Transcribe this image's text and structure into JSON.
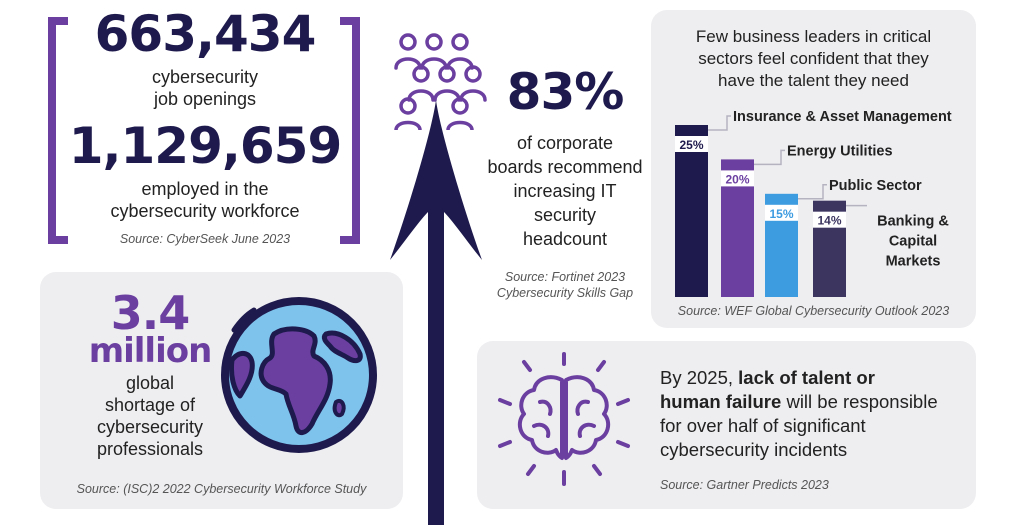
{
  "jobs": {
    "openings_value": "663,434",
    "openings_label_1": "cybersecurity",
    "openings_label_2": "job openings",
    "employed_value": "1,129,659",
    "employed_label_1": "employed in the",
    "employed_label_2": "cybersecurity workforce",
    "source": "Source: CyberSeek June 2023"
  },
  "shortage": {
    "value": "3.4",
    "unit": "million",
    "label_1": "global",
    "label_2": "shortage of",
    "label_3": "cybersecurity",
    "label_4": "professionals",
    "source": "Source: (ISC)2 2022 Cybersecurity Workforce Study"
  },
  "boards": {
    "value": "83%",
    "label_1": "of corporate",
    "label_2": "boards recommend",
    "label_3": "increasing IT",
    "label_4": "security",
    "label_5": "headcount",
    "source_1": "Source: Fortinet 2023",
    "source_2": "Cybersecurity Skills Gap"
  },
  "talent": {
    "prefix": "By 2025, ",
    "bold_1": "lack of talent or",
    "bold_2": "human failure",
    "text_2": " will be responsible",
    "text_3": "for over half of significant",
    "text_4": "cybersecurity incidents",
    "source": "Source: Gartner Predicts 2023"
  },
  "colors": {
    "navy": "#1e1a4d",
    "purple": "#6b3fa0",
    "blue": "#3d9be0",
    "dark_slate": "#3b3560",
    "globe_ocean": "#7ec3ec",
    "panel_bg": "#eeeef1"
  },
  "icons": [
    "people-group-icon",
    "up-arrow-icon",
    "globe-icon",
    "brain-icon"
  ],
  "chart_data": {
    "type": "bar",
    "title_1": "Few business leaders in critical",
    "title_2": "sectors feel confident that they",
    "title_3": "have the talent they need",
    "categories": [
      "Insurance & Asset Management",
      "Energy Utilities",
      "Public Sector",
      "Banking & Capital Markets"
    ],
    "category_lines": [
      [
        "Insurance & Asset Management"
      ],
      [
        "Energy Utilities"
      ],
      [
        "Public Sector"
      ],
      [
        "Banking &",
        "Capital",
        "Markets"
      ]
    ],
    "values": [
      25,
      20,
      15,
      14
    ],
    "value_labels": [
      "25%",
      "20%",
      "15%",
      "14%"
    ],
    "colors": [
      "#1e1a4d",
      "#6b3fa0",
      "#3d9be0",
      "#3b3560"
    ],
    "source": "Source: WEF Global Cybersecurity Outlook 2023"
  }
}
